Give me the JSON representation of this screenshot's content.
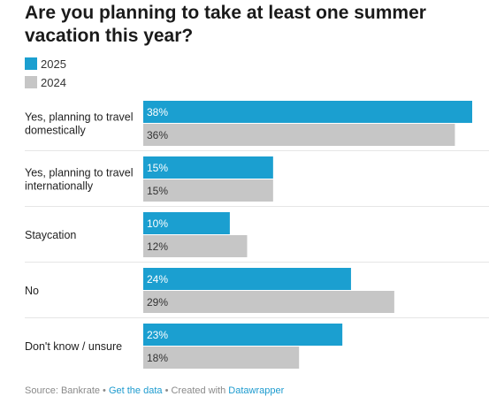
{
  "title": "Are you planning to take at least one summer vacation this year?",
  "legend": [
    {
      "label": "2025",
      "color": "#1b9fd0"
    },
    {
      "label": "2024",
      "color": "#c6c6c6"
    }
  ],
  "footer": {
    "source": "Source: Bankrate",
    "sep1": " • ",
    "get_data": "Get the data",
    "sep2": " • Created with ",
    "datawrapper": "Datawrapper"
  },
  "chart_data": {
    "type": "bar",
    "orientation": "horizontal",
    "categories": [
      "Yes, planning to travel domestically",
      "Yes, planning to travel internationally",
      "Staycation",
      "No",
      "Don't know / unsure"
    ],
    "series": [
      {
        "name": "2025",
        "color": "#1b9fd0",
        "values": [
          38,
          15,
          10,
          24,
          23
        ],
        "labels": [
          "38%",
          "15%",
          "10%",
          "24%",
          "23%"
        ]
      },
      {
        "name": "2024",
        "color": "#c6c6c6",
        "values": [
          36,
          15,
          12,
          29,
          18
        ],
        "labels": [
          "36%",
          "15%",
          "12%",
          "29%",
          "18%"
        ]
      }
    ],
    "xlim": [
      0,
      38
    ],
    "legend_position": "top-left",
    "grid": false
  }
}
